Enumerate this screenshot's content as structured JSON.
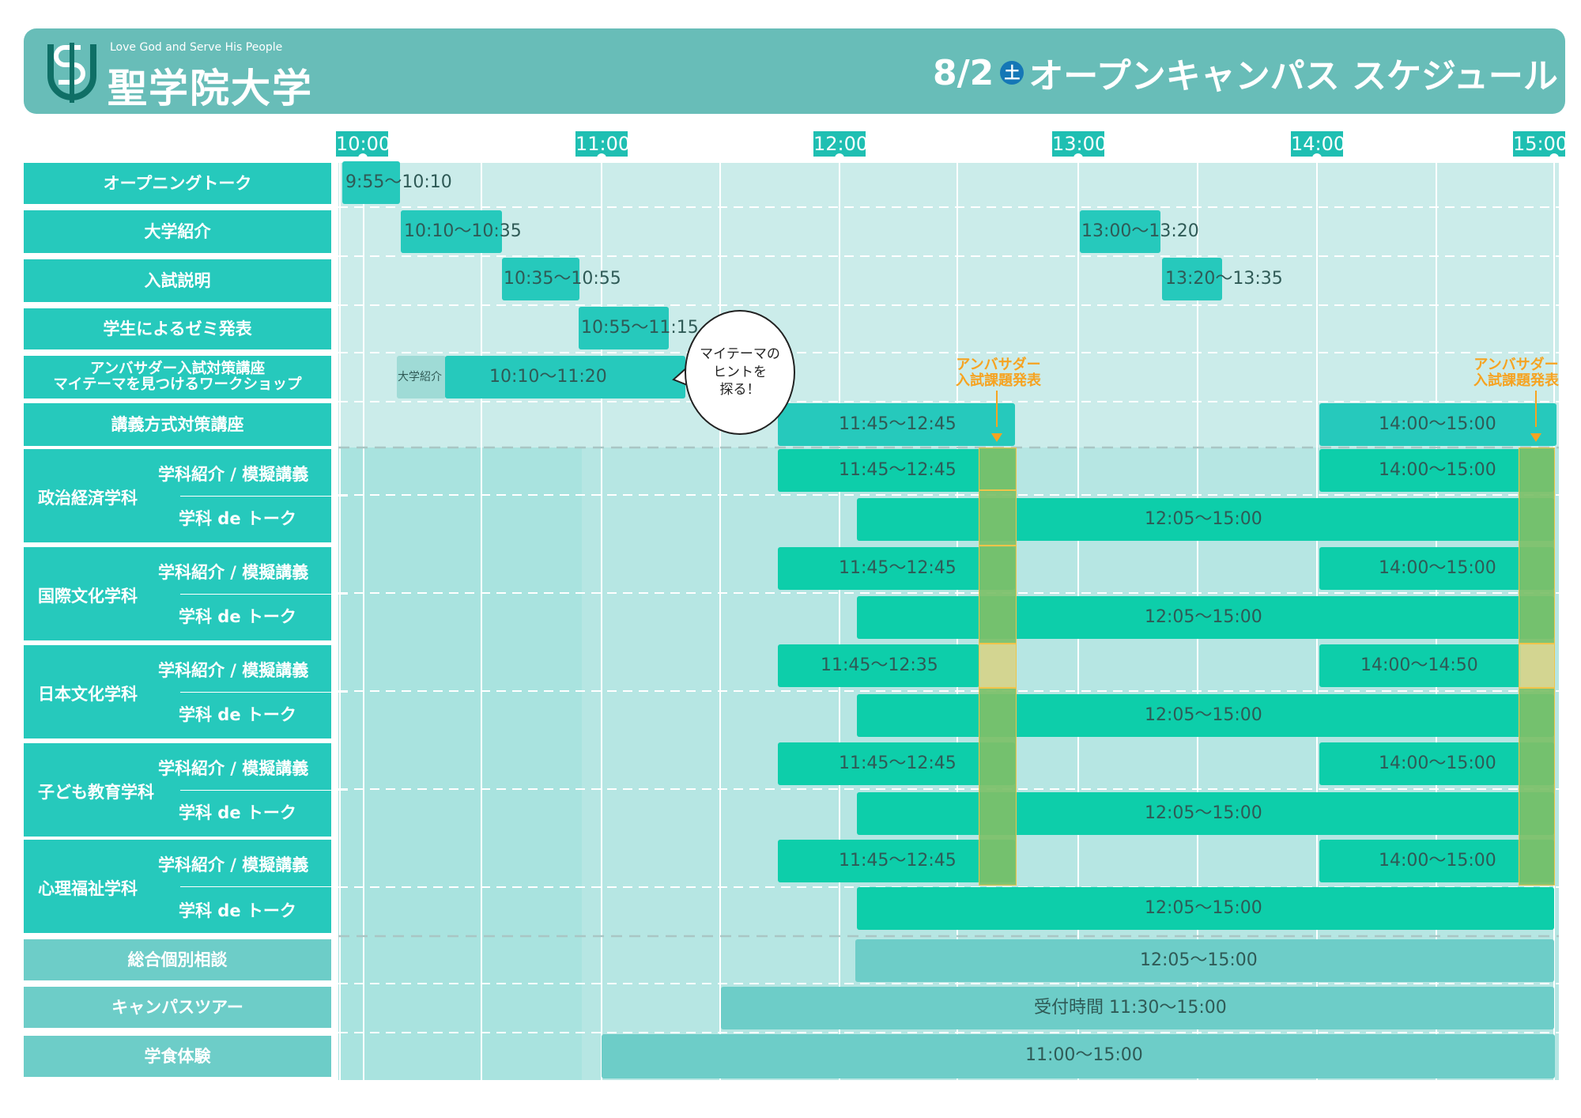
{
  "header": {
    "motto": "Love God and Serve His People",
    "university": "聖学院大学",
    "date": "8/2",
    "day": "土",
    "title": "オープンキャンパス スケジュール"
  },
  "time_axis": [
    "10:00",
    "11:00",
    "12:00",
    "13:00",
    "14:00",
    "15:00"
  ],
  "rows": {
    "opening": "オープニングトーク",
    "intro": "大学紹介",
    "exam": "入試説明",
    "seminar": "学生によるゼミ発表",
    "ambassador_1": "アンバサダー入試対策講座",
    "ambassador_2": "マイテーマを見つけるワークショップ",
    "lecture": "講義方式対策講座",
    "consult": "総合個別相談",
    "tour": "キャンパスツアー",
    "food": "学食体験"
  },
  "departments": [
    {
      "name": "政治経済学科",
      "sub1": "学科紹介 / 模擬講義",
      "sub2": "学科 de トーク"
    },
    {
      "name": "国際文化学科",
      "sub1": "学科紹介 / 模擬講義",
      "sub2": "学科 de トーク"
    },
    {
      "name": "日本文化学科",
      "sub1": "学科紹介 / 模擬講義",
      "sub2": "学科 de トーク"
    },
    {
      "name": "子ども教育学科",
      "sub1": "学科紹介 / 模擬講義",
      "sub2": "学科 de トーク"
    },
    {
      "name": "心理福祉学科",
      "sub1": "学科紹介 / 模擬講義",
      "sub2": "学科 de トーク"
    }
  ],
  "events": {
    "opening": "9:55〜10:10",
    "intro_am": "10:10〜10:35",
    "intro_pm": "13:00〜13:20",
    "exam_am": "10:35〜10:55",
    "exam_pm": "13:20〜13:35",
    "seminar": "10:55〜11:15",
    "amb_small": "大学紹介",
    "amb": "10:10〜11:20",
    "lecture_am": "11:45〜12:45",
    "lecture_pm": "14:00〜15:00",
    "d1_am": "11:45〜12:45",
    "d1_pm": "14:00〜15:00",
    "d1_talk": "12:05〜15:00",
    "d2_am": "11:45〜12:45",
    "d2_pm": "14:00〜15:00",
    "d2_talk": "12:05〜15:00",
    "d3_am": "11:45〜12:35",
    "d3_pm": "14:00〜14:50",
    "d3_talk": "12:05〜15:00",
    "d4_am": "11:45〜12:45",
    "d4_pm": "14:00〜15:00",
    "d4_talk": "12:05〜15:00",
    "d5_am": "11:45〜12:45",
    "d5_pm": "14:00〜15:00",
    "d5_talk": "12:05〜15:00",
    "consult": "12:05〜15:00",
    "tour": "受付時間 11:30〜15:00",
    "food": "11:00〜15:00"
  },
  "callouts": {
    "ambassador_1": "アンバサダー",
    "ambassador_2": "入試課題発表",
    "bubble": "マイテーマの\nヒントを\n探る！"
  },
  "colors": {
    "header_bg": "#68bdb8",
    "label_bg": "#26c9bc",
    "session": "#0dceaa",
    "muted": "#6dcdc8",
    "accent": "#f6a321",
    "day_badge": "#1577b6"
  }
}
